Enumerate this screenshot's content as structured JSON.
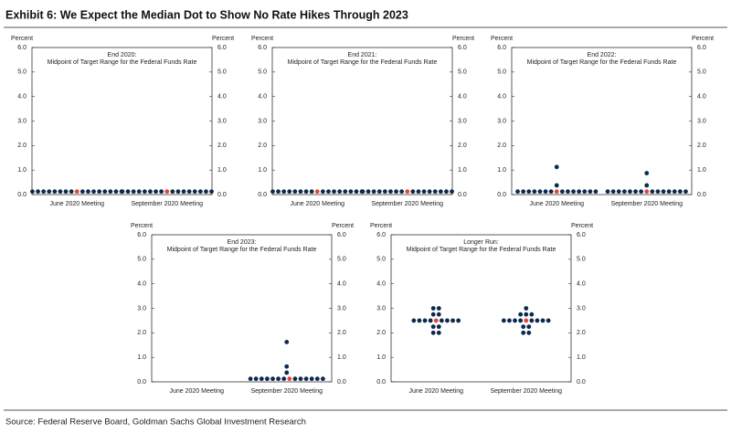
{
  "title": "Exhibit 6: We Expect the Median Dot to Show No Rate Hikes Through 2023",
  "source": "Source: Federal Reserve Board, Goldman Sachs Global Investment Research",
  "chart_data": [
    {
      "type": "dot",
      "title": "End 2020:",
      "subtitle": "Midpoint of Target Range for the Federal Funds Rate",
      "ylabel": "Percent",
      "y2label": "Percent",
      "color": "#0d2a4e",
      "median_color": "#e0463a",
      "categories": [
        "June 2020 Meeting",
        "September 2020 Meeting"
      ],
      "values": [
        [
          0.125,
          0.125,
          0.125,
          0.125,
          0.125,
          0.125,
          0.125,
          0.125,
          0.125,
          0.125,
          0.125,
          0.125,
          0.125,
          0.125,
          0.125,
          0.125,
          0.125
        ],
        [
          0.125,
          0.125,
          0.125,
          0.125,
          0.125,
          0.125,
          0.125,
          0.125,
          0.125,
          0.125,
          0.125,
          0.125,
          0.125,
          0.125,
          0.125,
          0.125,
          0.125
        ]
      ],
      "ylim": [
        0,
        6
      ],
      "yticks": [
        {
          "value": 0,
          "label": "0.0"
        },
        {
          "value": 1,
          "label": "1.0"
        },
        {
          "value": 2,
          "label": "2.0"
        },
        {
          "value": 3,
          "label": "3.0"
        },
        {
          "value": 4,
          "label": "4.0"
        },
        {
          "value": 5,
          "label": "5.0"
        },
        {
          "value": 6,
          "label": "6.0"
        }
      ],
      "y2lim": [
        0,
        6
      ],
      "y2ticks": [
        {
          "value": 0,
          "label": "0.0"
        },
        {
          "value": 1,
          "label": "1.0"
        },
        {
          "value": 2,
          "label": "2.0"
        },
        {
          "value": 3,
          "label": "3.0"
        },
        {
          "value": 4,
          "label": "4.0"
        },
        {
          "value": 5,
          "label": "5.0"
        },
        {
          "value": 6,
          "label": "6.0"
        }
      ]
    },
    {
      "type": "dot",
      "title": "End 2021:",
      "subtitle": "Midpoint of Target Range for the Federal Funds Rate",
      "ylabel": "Percent",
      "y2label": "Percent",
      "color": "#0d2a4e",
      "median_color": "#e0463a",
      "categories": [
        "June 2020 Meeting",
        "September 2020 Meeting"
      ],
      "values": [
        [
          0.125,
          0.125,
          0.125,
          0.125,
          0.125,
          0.125,
          0.125,
          0.125,
          0.125,
          0.125,
          0.125,
          0.125,
          0.125,
          0.125,
          0.125,
          0.125,
          0.125
        ],
        [
          0.125,
          0.125,
          0.125,
          0.125,
          0.125,
          0.125,
          0.125,
          0.125,
          0.125,
          0.125,
          0.125,
          0.125,
          0.125,
          0.125,
          0.125,
          0.125,
          0.125
        ]
      ],
      "ylim": [
        0,
        6
      ],
      "yticks": [
        {
          "value": 0,
          "label": "0.0"
        },
        {
          "value": 1,
          "label": "1.0"
        },
        {
          "value": 2,
          "label": "2.0"
        },
        {
          "value": 3,
          "label": "3.0"
        },
        {
          "value": 4,
          "label": "4.0"
        },
        {
          "value": 5,
          "label": "5.0"
        },
        {
          "value": 6,
          "label": "6.0"
        }
      ],
      "y2lim": [
        0,
        6
      ],
      "y2ticks": [
        {
          "value": 0,
          "label": "0.0"
        },
        {
          "value": 1,
          "label": "1.0"
        },
        {
          "value": 2,
          "label": "2.0"
        },
        {
          "value": 3,
          "label": "3.0"
        },
        {
          "value": 4,
          "label": "4.0"
        },
        {
          "value": 5,
          "label": "5.0"
        },
        {
          "value": 6,
          "label": "6.0"
        }
      ]
    },
    {
      "type": "dot",
      "title": "End 2022:",
      "subtitle": "Midpoint of Target Range for the Federal Funds Rate",
      "ylabel": "Percent",
      "y2label": "Percent",
      "color": "#0d2a4e",
      "median_color": "#e0463a",
      "categories": [
        "June 2020 Meeting",
        "September 2020 Meeting"
      ],
      "values": [
        [
          1.125,
          0.375,
          0.125,
          0.125,
          0.125,
          0.125,
          0.125,
          0.125,
          0.125,
          0.125,
          0.125,
          0.125,
          0.125,
          0.125,
          0.125,
          0.125,
          0.125
        ],
        [
          0.875,
          0.375,
          0.125,
          0.125,
          0.125,
          0.125,
          0.125,
          0.125,
          0.125,
          0.125,
          0.125,
          0.125,
          0.125,
          0.125,
          0.125,
          0.125,
          0.125
        ]
      ],
      "ylim": [
        0,
        6
      ],
      "yticks": [
        {
          "value": 0,
          "label": "0.0"
        },
        {
          "value": 1,
          "label": "1.0"
        },
        {
          "value": 2,
          "label": "2.0"
        },
        {
          "value": 3,
          "label": "3.0"
        },
        {
          "value": 4,
          "label": "4.0"
        },
        {
          "value": 5,
          "label": "5.0"
        },
        {
          "value": 6,
          "label": "6.0"
        }
      ],
      "y2lim": [
        0,
        6
      ],
      "y2ticks": [
        {
          "value": 0,
          "label": "0.0"
        },
        {
          "value": 1,
          "label": "1.0"
        },
        {
          "value": 2,
          "label": "2.0"
        },
        {
          "value": 3,
          "label": "3.0"
        },
        {
          "value": 4,
          "label": "4.0"
        },
        {
          "value": 5,
          "label": "5.0"
        },
        {
          "value": 6,
          "label": "6.0"
        }
      ]
    },
    {
      "type": "dot",
      "title": "End 2023:",
      "subtitle": "Midpoint of Target Range for the Federal Funds Rate",
      "ylabel": "Percent",
      "y2label": "Percent",
      "color": "#0d2a4e",
      "median_color": "#e0463a",
      "categories": [
        "June 2020 Meeting",
        "September 2020 Meeting"
      ],
      "values": [
        [],
        [
          1.625,
          0.625,
          0.375,
          0.125,
          0.125,
          0.125,
          0.125,
          0.125,
          0.125,
          0.125,
          0.125,
          0.125,
          0.125,
          0.125,
          0.125,
          0.125,
          0.125
        ]
      ],
      "ylim": [
        0,
        6
      ],
      "yticks": [
        {
          "value": 0,
          "label": "0.0"
        },
        {
          "value": 1,
          "label": "1.0"
        },
        {
          "value": 2,
          "label": "2.0"
        },
        {
          "value": 3,
          "label": "3.0"
        },
        {
          "value": 4,
          "label": "4.0"
        },
        {
          "value": 5,
          "label": "5.0"
        },
        {
          "value": 6,
          "label": "6.0"
        }
      ],
      "y2lim": [
        0,
        6
      ],
      "y2ticks": [
        {
          "value": 0,
          "label": "0.0"
        },
        {
          "value": 1,
          "label": "1.0"
        },
        {
          "value": 2,
          "label": "2.0"
        },
        {
          "value": 3,
          "label": "3.0"
        },
        {
          "value": 4,
          "label": "4.0"
        },
        {
          "value": 5,
          "label": "5.0"
        },
        {
          "value": 6,
          "label": "6.0"
        }
      ]
    },
    {
      "type": "dot",
      "title": "Longer Run:",
      "subtitle": "Midpoint of Target Range for the Federal Funds Rate",
      "ylabel": "Percent",
      "y2label": "Percent",
      "color": "#0d2a4e",
      "median_color": "#e0463a",
      "categories": [
        "June 2020 Meeting",
        "September 2020 Meeting"
      ],
      "values": [
        [
          3.0,
          3.0,
          2.75,
          2.75,
          2.5,
          2.5,
          2.5,
          2.5,
          2.5,
          2.5,
          2.5,
          2.5,
          2.5,
          2.25,
          2.25,
          2.0,
          2.0
        ],
        [
          3.0,
          2.75,
          2.75,
          2.75,
          2.5,
          2.5,
          2.5,
          2.5,
          2.5,
          2.5,
          2.5,
          2.5,
          2.5,
          2.25,
          2.25,
          2.0,
          2.0
        ]
      ],
      "ylim": [
        0,
        6
      ],
      "yticks": [
        {
          "value": 0,
          "label": "0.0"
        },
        {
          "value": 1,
          "label": "1.0"
        },
        {
          "value": 2,
          "label": "2.0"
        },
        {
          "value": 3,
          "label": "3.0"
        },
        {
          "value": 4,
          "label": "4.0"
        },
        {
          "value": 5,
          "label": "5.0"
        },
        {
          "value": 6,
          "label": "6.0"
        }
      ],
      "y2lim": [
        0,
        6
      ],
      "y2ticks": [
        {
          "value": 0,
          "label": "0.0"
        },
        {
          "value": 1,
          "label": "1.0"
        },
        {
          "value": 2,
          "label": "2.0"
        },
        {
          "value": 3,
          "label": "3.0"
        },
        {
          "value": 4,
          "label": "4.0"
        },
        {
          "value": 5,
          "label": "5.0"
        },
        {
          "value": 6,
          "label": "6.0"
        }
      ]
    }
  ]
}
